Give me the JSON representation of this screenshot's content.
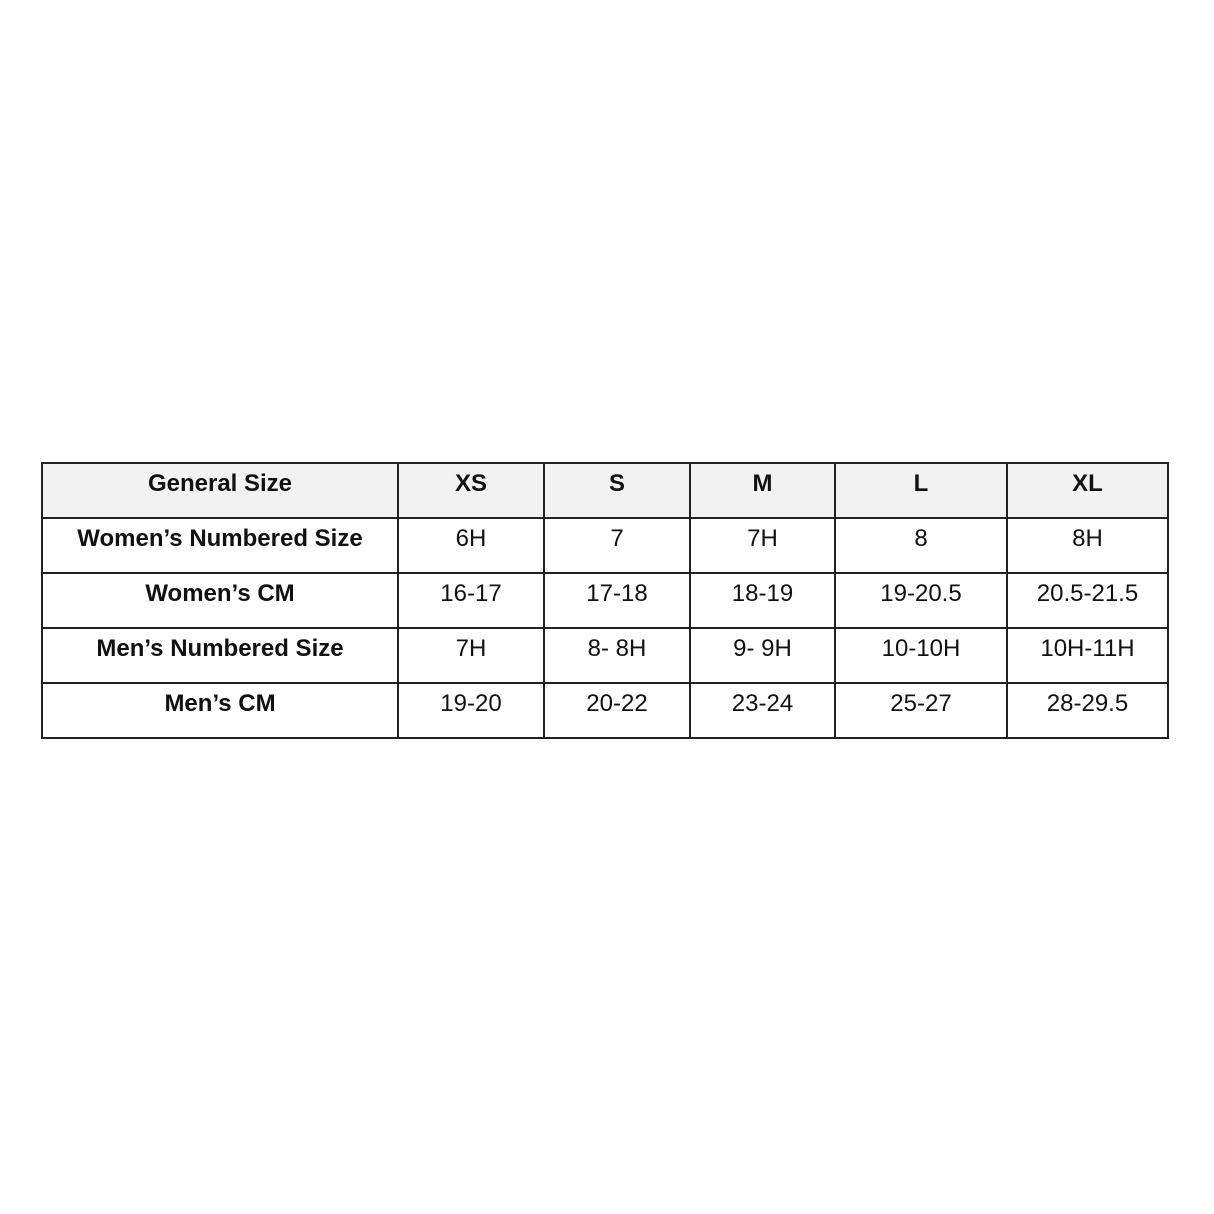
{
  "table": {
    "header": [
      "General Size",
      "XS",
      "S",
      "M",
      "L",
      "XL"
    ],
    "rows": [
      {
        "label": "Women’s Numbered Size",
        "values": [
          "6H",
          "7",
          "7H",
          "8",
          "8H"
        ]
      },
      {
        "label": "Women’s CM",
        "values": [
          "16-17",
          "17-18",
          "18-19",
          "19-20.5",
          "20.5-21.5"
        ]
      },
      {
        "label": "Men’s Numbered Size",
        "values": [
          "7H",
          "8- 8H",
          "9- 9H",
          "10-10H",
          "10H-11H"
        ]
      },
      {
        "label": "Men’s CM",
        "values": [
          "19-20",
          "20-22",
          "23-24",
          "25-27",
          "28-29.5"
        ]
      }
    ]
  },
  "colors": {
    "header_bg": "#f2f2f2",
    "border": "#222222"
  }
}
